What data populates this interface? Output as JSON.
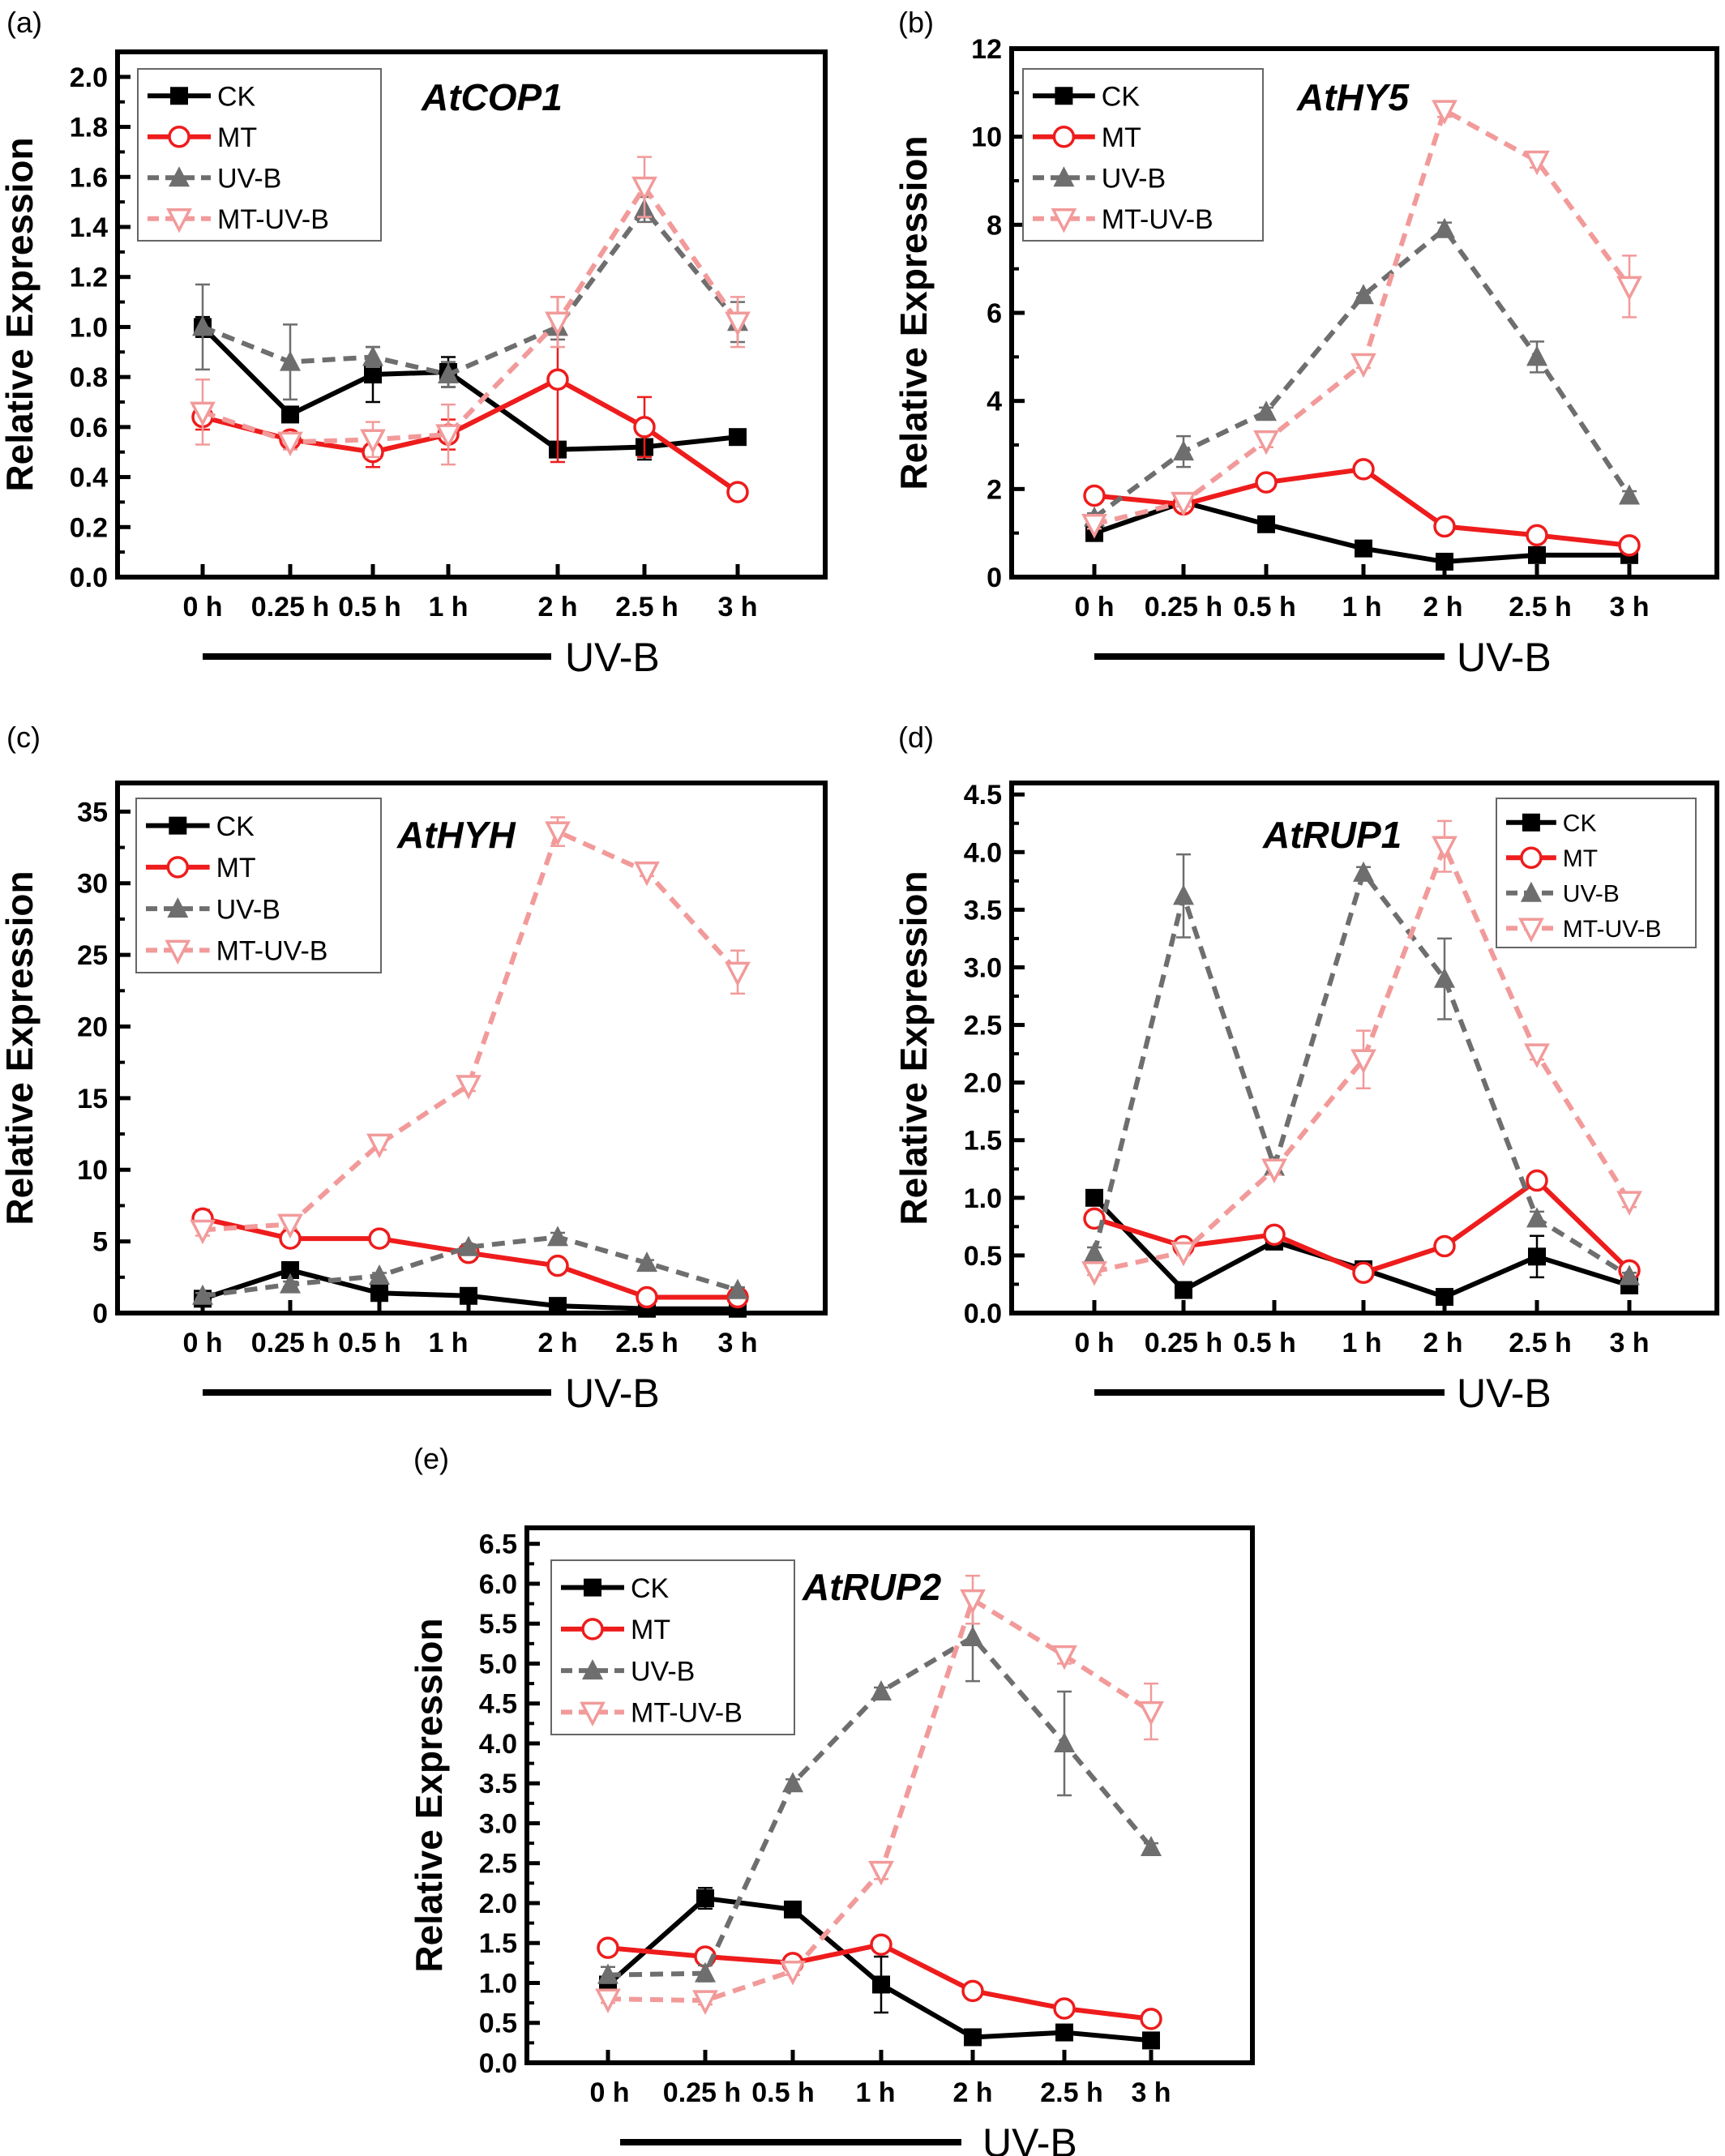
{
  "colors": {
    "CK": "#000000",
    "MT": "#ee1c1c",
    "UV-B": "#6e6e6e",
    "MT-UV-B": "#f29a9a"
  },
  "chart_data": [
    {
      "panel": "(a)",
      "title": "AtCOP1",
      "type": "line",
      "ylabel": "Relative Expression",
      "xlabel": "UV-B",
      "categories": [
        "0 h",
        "0.25 h",
        "0.5 h",
        "1 h",
        "2 h",
        "2.5 h",
        "3 h"
      ],
      "ylim": [
        0,
        2.1
      ],
      "yticks": [
        0.0,
        0.2,
        0.4,
        0.6,
        0.8,
        1.0,
        1.2,
        1.4,
        1.6,
        1.8,
        2.0
      ],
      "tick_decimals": 1,
      "legend_position": "top-left",
      "series": [
        {
          "name": "CK",
          "marker": "square",
          "dash": "solid",
          "values": [
            1.0,
            0.65,
            0.81,
            0.82,
            0.51,
            0.52,
            0.56
          ],
          "errors": [
            0.04,
            0.03,
            0.11,
            0.06,
            0.03,
            0.05,
            0.02
          ]
        },
        {
          "name": "MT",
          "marker": "circle",
          "dash": "solid",
          "values": [
            0.64,
            0.55,
            0.5,
            0.57,
            0.79,
            0.6,
            0.34
          ],
          "errors": [
            0.05,
            0.02,
            0.06,
            0.06,
            0.33,
            0.12,
            0.01
          ]
        },
        {
          "name": "UV-B",
          "marker": "triangle-up",
          "dash": "dashed",
          "values": [
            1.0,
            0.86,
            0.88,
            0.81,
            1.0,
            1.47,
            1.02
          ],
          "errors": [
            0.17,
            0.15,
            0.04,
            0.05,
            0.05,
            0.05,
            0.08
          ]
        },
        {
          "name": "MT-UV-B",
          "marker": "triangle-down",
          "dash": "dashed",
          "values": [
            0.66,
            0.54,
            0.55,
            0.57,
            1.02,
            1.56,
            1.02
          ],
          "errors": [
            0.13,
            0.03,
            0.07,
            0.12,
            0.1,
            0.12,
            0.1
          ]
        }
      ]
    },
    {
      "panel": "(b)",
      "title": "AtHY5",
      "type": "line",
      "ylabel": "Relative Expression",
      "xlabel": "UV-B",
      "categories": [
        "0 h",
        "0.25 h",
        "0.5 h",
        "1 h",
        "2 h",
        "2.5 h",
        "3 h"
      ],
      "ylim": [
        0,
        12
      ],
      "yticks": [
        0,
        2,
        4,
        6,
        8,
        10,
        12
      ],
      "tick_decimals": 0,
      "legend_position": "top-left",
      "series": [
        {
          "name": "CK",
          "marker": "square",
          "dash": "solid",
          "values": [
            1.0,
            1.7,
            1.2,
            0.65,
            0.35,
            0.5,
            0.5
          ],
          "errors": [
            0.05,
            0.1,
            0.05,
            0.05,
            0.05,
            0.05,
            0.05
          ]
        },
        {
          "name": "MT",
          "marker": "circle",
          "dash": "solid",
          "values": [
            1.85,
            1.65,
            2.15,
            2.45,
            1.15,
            0.95,
            0.72
          ],
          "errors": [
            0.05,
            0.05,
            0.05,
            0.05,
            0.05,
            0.05,
            0.05
          ]
        },
        {
          "name": "UV-B",
          "marker": "triangle-up",
          "dash": "dashed",
          "values": [
            1.35,
            2.85,
            3.75,
            6.4,
            7.9,
            5.0,
            1.85
          ],
          "errors": [
            0.1,
            0.35,
            0.1,
            0.05,
            0.15,
            0.35,
            0.1
          ]
        },
        {
          "name": "MT-UV-B",
          "marker": "triangle-down",
          "dash": "dashed",
          "values": [
            1.2,
            1.7,
            3.1,
            4.85,
            10.6,
            9.45,
            6.6
          ],
          "errors": [
            0.1,
            0.1,
            0.15,
            0.1,
            0.15,
            0.15,
            0.7
          ]
        }
      ]
    },
    {
      "panel": "(c)",
      "title": "AtHYH",
      "type": "line",
      "ylabel": "Relative Expression",
      "xlabel": "UV-B",
      "categories": [
        "0 h",
        "0.25 h",
        "0.5 h",
        "1 h",
        "2 h",
        "2.5 h",
        "3 h"
      ],
      "ylim": [
        0,
        37
      ],
      "yticks": [
        0,
        5,
        10,
        15,
        20,
        25,
        30,
        35
      ],
      "tick_decimals": 0,
      "legend_position": "top-left",
      "series": [
        {
          "name": "CK",
          "marker": "square",
          "dash": "solid",
          "values": [
            1.0,
            3.0,
            1.4,
            1.2,
            0.5,
            0.3,
            0.3
          ],
          "errors": [
            0.2,
            0.3,
            0.2,
            0.2,
            0.1,
            0.1,
            0.1
          ]
        },
        {
          "name": "MT",
          "marker": "circle",
          "dash": "solid",
          "values": [
            6.6,
            5.2,
            5.2,
            4.2,
            3.3,
            1.1,
            1.1
          ],
          "errors": [
            0.6,
            0.2,
            0.2,
            0.2,
            0.2,
            0.1,
            0.1
          ]
        },
        {
          "name": "UV-B",
          "marker": "triangle-up",
          "dash": "dashed",
          "values": [
            1.2,
            2.0,
            2.6,
            4.6,
            5.3,
            3.5,
            1.6
          ],
          "errors": [
            0.2,
            0.2,
            0.2,
            0.2,
            0.3,
            0.2,
            0.2
          ]
        },
        {
          "name": "MT-UV-B",
          "marker": "triangle-down",
          "dash": "dashed",
          "values": [
            5.8,
            6.2,
            11.8,
            15.9,
            33.6,
            30.8,
            23.8
          ],
          "errors": [
            0.4,
            0.3,
            0.4,
            0.4,
            1.0,
            0.3,
            1.5
          ]
        }
      ]
    },
    {
      "panel": "(d)",
      "title": "AtRUP1",
      "type": "line",
      "ylabel": "Relative Expression",
      "xlabel": "UV-B",
      "categories": [
        "0 h",
        "0.25 h",
        "0.5 h",
        "1 h",
        "2 h",
        "2.5 h",
        "3 h"
      ],
      "ylim": [
        0,
        4.6
      ],
      "yticks": [
        0.0,
        0.5,
        1.0,
        1.5,
        2.0,
        2.5,
        3.0,
        3.5,
        4.0,
        4.5
      ],
      "tick_decimals": 1,
      "legend_position": "top-right",
      "series": [
        {
          "name": "CK",
          "marker": "square",
          "dash": "solid",
          "values": [
            1.0,
            0.2,
            0.62,
            0.38,
            0.14,
            0.49,
            0.24
          ],
          "errors": [
            0.03,
            0.03,
            0.03,
            0.03,
            0.02,
            0.18,
            0.03
          ]
        },
        {
          "name": "MT",
          "marker": "circle",
          "dash": "solid",
          "values": [
            0.82,
            0.58,
            0.68,
            0.35,
            0.58,
            1.15,
            0.37
          ],
          "errors": [
            0.04,
            0.03,
            0.03,
            0.03,
            0.03,
            0.04,
            0.03
          ]
        },
        {
          "name": "UV-B",
          "marker": "triangle-up",
          "dash": "dashed",
          "values": [
            0.52,
            3.62,
            1.27,
            3.82,
            2.9,
            0.82,
            0.32
          ],
          "errors": [
            0.05,
            0.36,
            0.05,
            0.05,
            0.35,
            0.06,
            0.03
          ]
        },
        {
          "name": "MT-UV-B",
          "marker": "triangle-down",
          "dash": "dashed",
          "values": [
            0.36,
            0.53,
            1.25,
            2.2,
            4.05,
            2.25,
            0.97
          ],
          "errors": [
            0.03,
            0.03,
            0.05,
            0.25,
            0.22,
            0.05,
            0.05
          ]
        }
      ]
    },
    {
      "panel": "(e)",
      "title": "AtRUP2",
      "type": "line",
      "ylabel": "Relative Expression",
      "xlabel": "UV-B",
      "categories": [
        "0 h",
        "0.25 h",
        "0.5 h",
        "1 h",
        "2 h",
        "2.5 h",
        "3 h"
      ],
      "ylim": [
        0,
        6.7
      ],
      "yticks": [
        0.0,
        0.5,
        1.0,
        1.5,
        2.0,
        2.5,
        3.0,
        3.5,
        4.0,
        4.5,
        5.0,
        5.5,
        6.0,
        6.5
      ],
      "tick_decimals": 1,
      "legend_position": "top-left",
      "series": [
        {
          "name": "CK",
          "marker": "square",
          "dash": "solid",
          "values": [
            0.98,
            2.06,
            1.92,
            0.98,
            0.32,
            0.38,
            0.28
          ],
          "errors": [
            0.05,
            0.13,
            0.05,
            0.35,
            0.04,
            0.04,
            0.04
          ]
        },
        {
          "name": "MT",
          "marker": "circle",
          "dash": "solid",
          "values": [
            1.44,
            1.33,
            1.25,
            1.48,
            0.9,
            0.68,
            0.55
          ],
          "errors": [
            0.05,
            0.05,
            0.05,
            0.05,
            0.05,
            0.05,
            0.05
          ]
        },
        {
          "name": "UV-B",
          "marker": "triangle-up",
          "dash": "dashed",
          "values": [
            1.1,
            1.12,
            3.5,
            4.65,
            5.33,
            4.0,
            2.7
          ],
          "errors": [
            0.1,
            0.1,
            0.05,
            0.05,
            0.55,
            0.65,
            0.05
          ]
        },
        {
          "name": "MT-UV-B",
          "marker": "triangle-down",
          "dash": "dashed",
          "values": [
            0.8,
            0.78,
            1.15,
            2.4,
            5.8,
            5.1,
            4.4
          ],
          "errors": [
            0.05,
            0.05,
            0.05,
            0.1,
            0.3,
            0.1,
            0.35
          ]
        }
      ]
    }
  ]
}
